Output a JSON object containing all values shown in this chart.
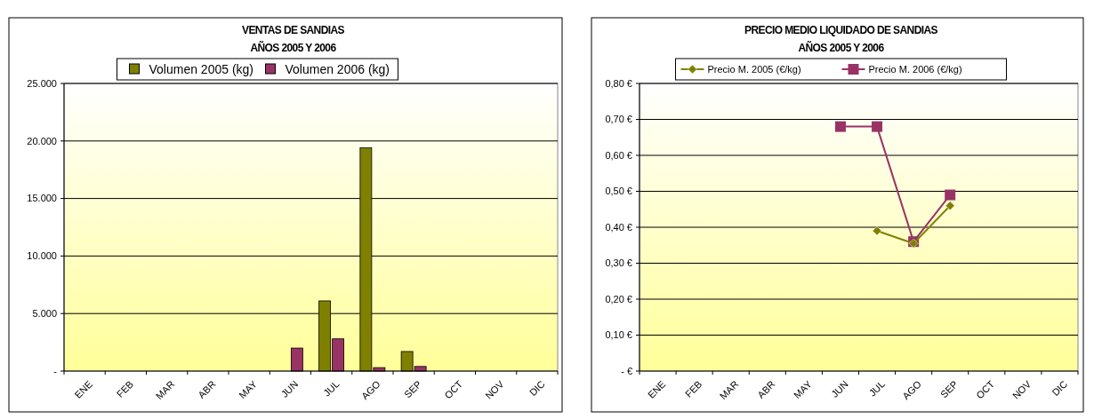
{
  "chart_data": [
    {
      "type": "bar",
      "title": "VENTAS DE SANDIAS\nAÑOS 2005 Y 2006",
      "categories": [
        "ENE",
        "FEB",
        "MAR",
        "ABR",
        "MAY",
        "JUN",
        "JUL",
        "AGO",
        "SEP",
        "OCT",
        "NOV",
        "DIC"
      ],
      "series": [
        {
          "name": "Volumen 2005 (kg)",
          "color": "#808000",
          "values": [
            null,
            null,
            null,
            null,
            null,
            null,
            6100,
            19400,
            1700,
            null,
            null,
            null
          ]
        },
        {
          "name": "Volumen 2006 (kg)",
          "color": "#993366",
          "values": [
            null,
            null,
            null,
            null,
            null,
            2000,
            2800,
            300,
            400,
            null,
            null,
            null
          ]
        }
      ],
      "ylim": [
        0,
        25000
      ],
      "yticks": [
        {
          "value": 0,
          "label": "-"
        },
        {
          "value": 5000,
          "label": "5.000"
        },
        {
          "value": 10000,
          "label": "10.000"
        },
        {
          "value": 15000,
          "label": "15.000"
        },
        {
          "value": 20000,
          "label": "20.000"
        },
        {
          "value": 25000,
          "label": "25.000"
        }
      ],
      "grid": "y",
      "legend": "top"
    },
    {
      "type": "line",
      "title": "PRECIO MEDIO LIQUIDADO DE SANDIAS\nAÑOS 2005 Y 2006",
      "categories": [
        "ENE",
        "FEB",
        "MAR",
        "ABR",
        "MAY",
        "JUN",
        "JUL",
        "AGO",
        "SEP",
        "OCT",
        "NOV",
        "DIC"
      ],
      "series": [
        {
          "name": "Precio M. 2005 (€/kg)",
          "color": "#808000",
          "marker": "diamond",
          "values": [
            null,
            null,
            null,
            null,
            null,
            null,
            0.39,
            0.355,
            0.46,
            null,
            null,
            null
          ]
        },
        {
          "name": "Precio M. 2006 (€/kg)",
          "color": "#993366",
          "marker": "square",
          "values": [
            null,
            null,
            null,
            null,
            null,
            0.68,
            0.68,
            0.36,
            0.49,
            null,
            null,
            null
          ]
        }
      ],
      "ylim": [
        0,
        0.8
      ],
      "yticks": [
        {
          "value": 0,
          "label": "- €"
        },
        {
          "value": 0.1,
          "label": "0,10 €"
        },
        {
          "value": 0.2,
          "label": "0,20 €"
        },
        {
          "value": 0.3,
          "label": "0,30 €"
        },
        {
          "value": 0.4,
          "label": "0,40 €"
        },
        {
          "value": 0.5,
          "label": "0,50 €"
        },
        {
          "value": 0.6,
          "label": "0,60 €"
        },
        {
          "value": 0.7,
          "label": "0,70 €"
        },
        {
          "value": 0.8,
          "label": "0,80 €"
        }
      ],
      "grid": "y",
      "legend": "top"
    }
  ]
}
